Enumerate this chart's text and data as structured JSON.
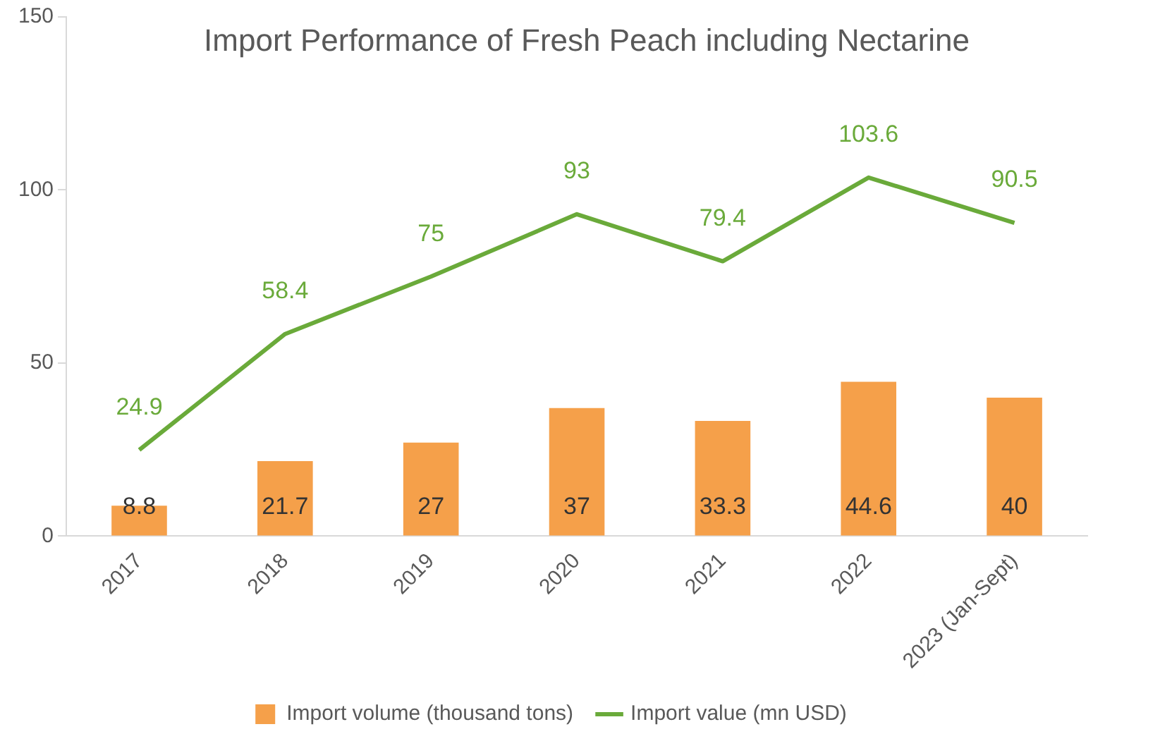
{
  "chart_data": {
    "type": "bar",
    "title": "Import Performance of Fresh Peach including Nectarine",
    "categories": [
      "2017",
      "2018",
      "2019",
      "2020",
      "2021",
      "2022",
      "2023 (Jan-Sept)"
    ],
    "series": [
      {
        "name": "Import volume (thousand tons)",
        "color": "#f5a04a",
        "values": [
          8.8,
          21.7,
          27,
          37,
          33.3,
          44.6,
          40
        ]
      },
      {
        "name": "Import value (mn USD)",
        "type": "line",
        "color": "#6aaa3a",
        "values": [
          24.9,
          58.4,
          75,
          93,
          79.4,
          103.6,
          90.5
        ]
      }
    ],
    "ylim": [
      0,
      150
    ],
    "yticks": [
      0,
      50,
      100,
      150
    ],
    "grid": false,
    "legend": "bottom",
    "data_labels": true,
    "marker": "none"
  }
}
